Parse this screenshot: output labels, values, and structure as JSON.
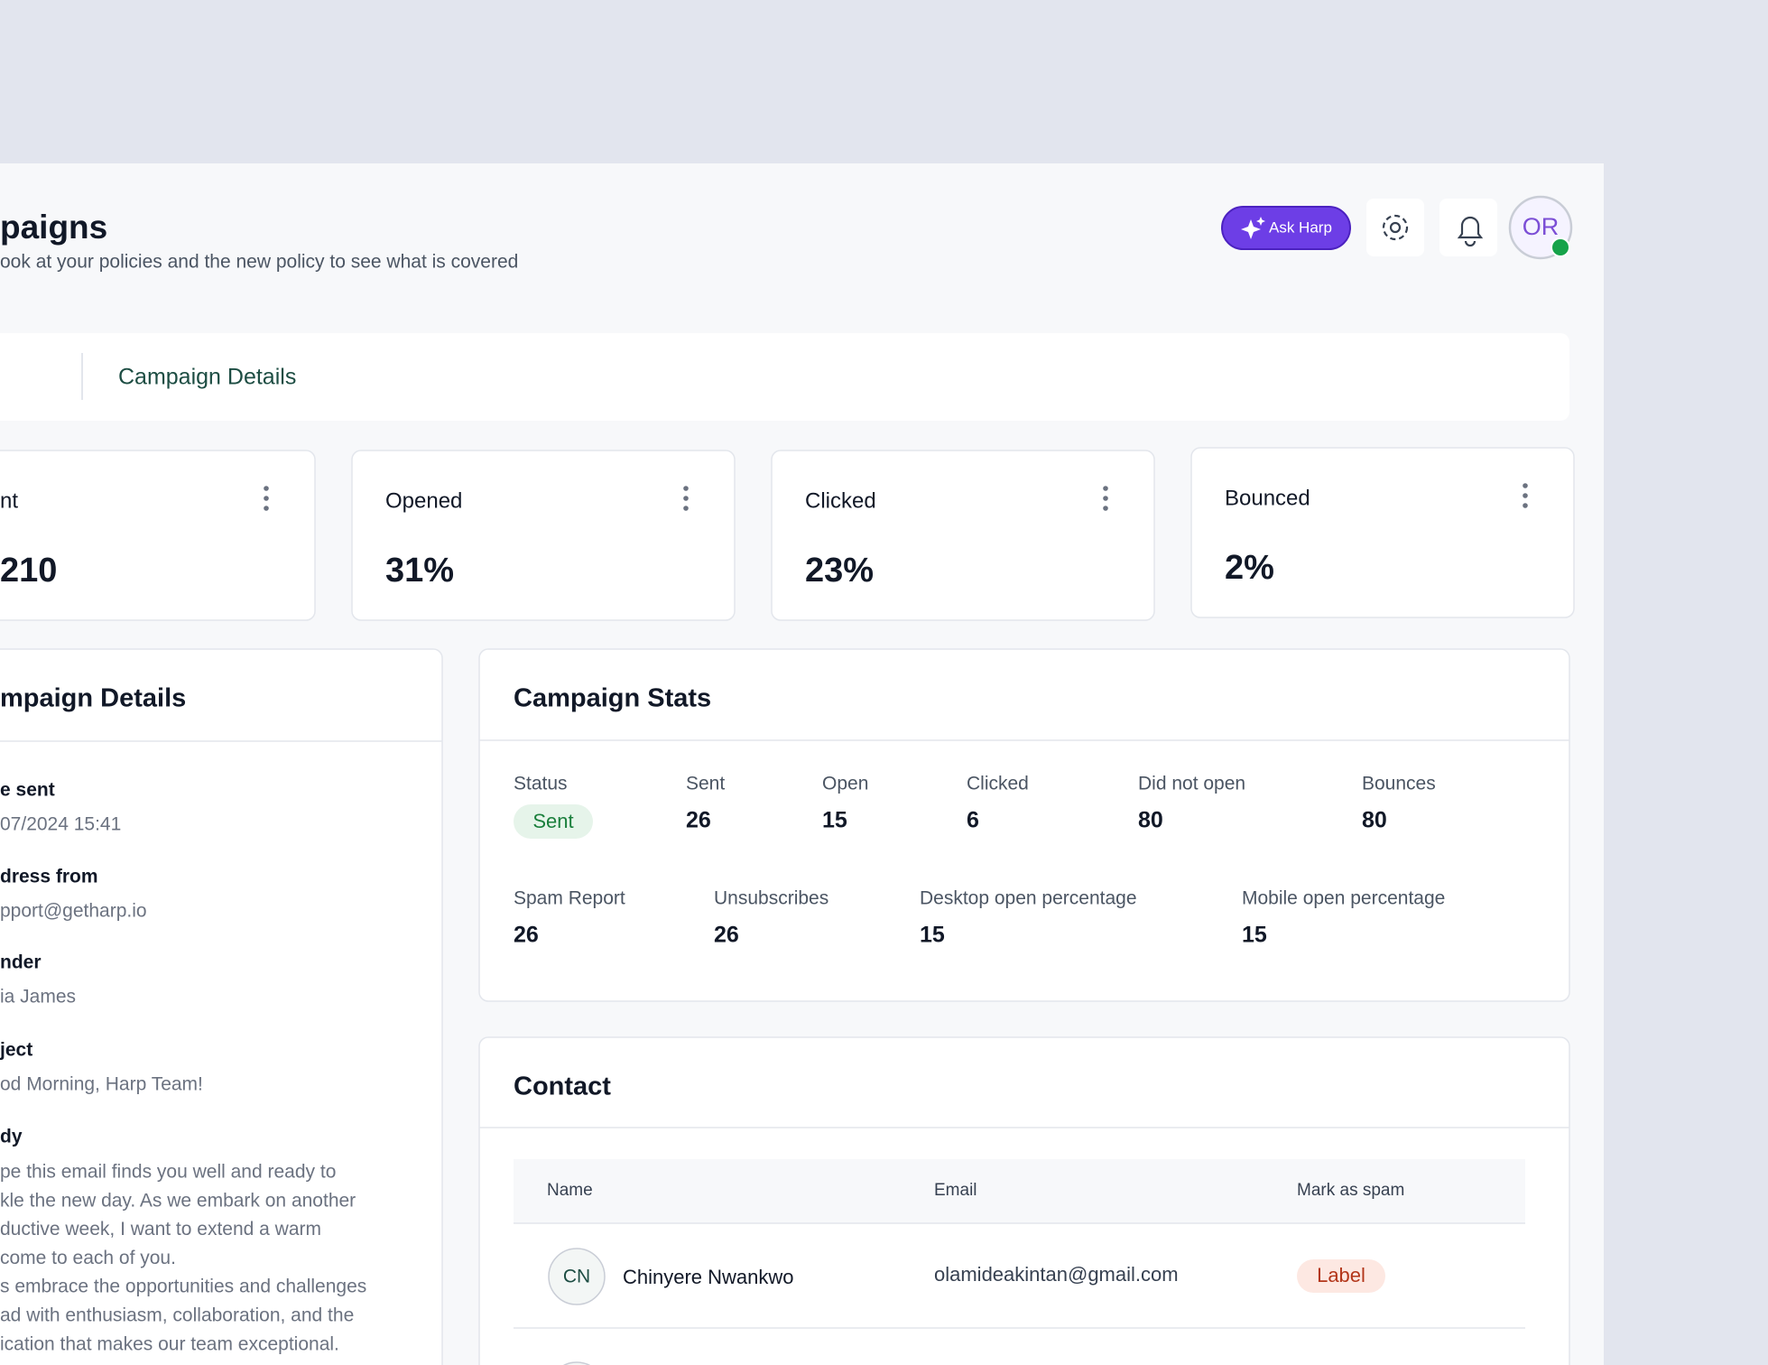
{
  "header": {
    "title": "paigns",
    "subtitle": "ook at your policies and the new policy to see what is covered",
    "ask_button": "Ask Harp",
    "avatar": "OR"
  },
  "tabs": {
    "active": "Campaign Details"
  },
  "stat_cards": [
    {
      "label": "nt",
      "value": "210"
    },
    {
      "label": "Opened",
      "value": "31%"
    },
    {
      "label": "Clicked",
      "value": "23%"
    },
    {
      "label": "Bounced",
      "value": "2%"
    }
  ],
  "details": {
    "title": "mpaign Details",
    "fields": [
      {
        "label": "e sent",
        "value": "07/2024 15:41"
      },
      {
        "label": "dress from",
        "value": "pport@getharp.io"
      },
      {
        "label": "nder",
        "value": "ia James"
      },
      {
        "label": "ject",
        "value": "od Morning, Harp Team!"
      }
    ],
    "body_label": "dy",
    "body_lines": [
      "pe this email finds you well and ready to",
      "kle the new day. As we embark on another",
      "ductive week, I want to extend a warm",
      "come to each of you.",
      "s embrace the opportunities and challenges",
      "ad with enthusiasm, collaboration, and the",
      "ication that makes our team exceptional."
    ]
  },
  "stats": {
    "title": "Campaign Stats",
    "items": [
      {
        "label": "Status",
        "value": "Sent"
      },
      {
        "label": "Sent",
        "value": "26"
      },
      {
        "label": "Open",
        "value": "15"
      },
      {
        "label": "Clicked",
        "value": "6"
      },
      {
        "label": "Did not open",
        "value": "80"
      },
      {
        "label": "Bounces",
        "value": "80"
      },
      {
        "label": "Spam Report",
        "value": "26"
      },
      {
        "label": "Unsubscribes",
        "value": "26"
      },
      {
        "label": "Desktop open percentage",
        "value": "15"
      },
      {
        "label": "Mobile open percentage",
        "value": "15"
      }
    ]
  },
  "contact": {
    "title": "Contact",
    "columns": [
      "Name",
      "Email",
      "Mark as spam"
    ],
    "rows": [
      {
        "initials": "CN",
        "name": "Chinyere Nwankwo",
        "email": "olamideakintan@gmail.com",
        "spam": "Label"
      }
    ]
  }
}
